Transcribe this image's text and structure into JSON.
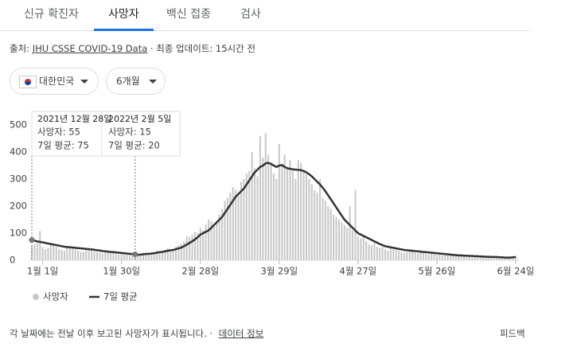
{
  "tabs": [
    "신규 확진자",
    "사망자",
    "백신 접종",
    "검사"
  ],
  "source": {
    "prefix": "출처:",
    "link": "JHU CSSE COVID-19 Data",
    "updated": "· 최종 업데이트: 15시간 전"
  },
  "filters": [
    "대한민국",
    "6개월"
  ],
  "tooltips": [
    {
      "date": "2021년 12월 28일",
      "deaths": "사망자: 55",
      "average": "7일 평균: 75"
    },
    {
      "date": "2022년 2월 5일",
      "deaths": "사망자: 15",
      "average": "7일 평균: 20"
    }
  ],
  "footer": {
    "note": "각 날짜에는 전날 이후 보고된 사망자가 표시됩니다. ·",
    "link": "데이터 정보",
    "feedback": "피드백"
  },
  "chart_data": {
    "type": "bar",
    "categories": [
      null,
      null,
      null,
      null,
      "1월 1일",
      null,
      null,
      null,
      null,
      null,
      null,
      null,
      null,
      null,
      null,
      null,
      null,
      null,
      null,
      null,
      null,
      null,
      null,
      null,
      null,
      null,
      null,
      null,
      null,
      null,
      null,
      null,
      null,
      "1월 30일",
      null,
      null,
      null,
      null,
      null,
      null,
      null,
      null,
      null,
      null,
      null,
      null,
      null,
      null,
      null,
      null,
      null,
      null,
      null,
      null,
      null,
      null,
      null,
      null,
      null,
      null,
      null,
      null,
      "2월 28일",
      null,
      null,
      null,
      null,
      null,
      null,
      null,
      null,
      null,
      null,
      null,
      null,
      null,
      null,
      null,
      null,
      null,
      null,
      null,
      null,
      null,
      null,
      null,
      null,
      null,
      null,
      null,
      null,
      "3월 29일",
      null,
      null,
      null,
      null,
      null,
      null,
      null,
      null,
      null,
      null,
      null,
      null,
      null,
      null,
      null,
      null,
      null,
      null,
      null,
      null,
      null,
      null,
      null,
      null,
      null,
      null,
      null,
      null,
      "4월 27일",
      null,
      null,
      null,
      null,
      null,
      null,
      null,
      null,
      null,
      null,
      null,
      null,
      null,
      null,
      null,
      null,
      null,
      null,
      null,
      null,
      null,
      null,
      null,
      null,
      null,
      null,
      null,
      null,
      "5월 26일",
      null,
      null,
      null,
      null,
      null,
      null,
      null,
      null,
      null,
      null,
      null,
      null,
      null,
      null,
      null,
      null,
      null,
      null,
      null,
      null,
      null,
      null,
      null,
      null,
      null,
      null,
      null,
      null,
      "6월 24일"
    ],
    "series": [
      {
        "name": "사망자",
        "type": "bar",
        "color": "#c8c8c8",
        "values": [
          55,
          60,
          70,
          108,
          48,
          40,
          45,
          60,
          55,
          50,
          42,
          38,
          35,
          48,
          52,
          45,
          40,
          35,
          30,
          32,
          38,
          45,
          40,
          33,
          30,
          28,
          25,
          30,
          35,
          32,
          28,
          25,
          22,
          24,
          28,
          25,
          20,
          22,
          18,
          15,
          20,
          28,
          30,
          25,
          22,
          28,
          35,
          32,
          30,
          38,
          45,
          40,
          35,
          50,
          55,
          60,
          70,
          90,
          85,
          95,
          105,
          100,
          120,
          110,
          130,
          150,
          145,
          125,
          140,
          170,
          190,
          220,
          230,
          250,
          270,
          260,
          240,
          290,
          300,
          320,
          330,
          400,
          340,
          310,
          460,
          380,
          470,
          390,
          360,
          320,
          300,
          430,
          350,
          390,
          340,
          370,
          330,
          300,
          370,
          360,
          330,
          320,
          300,
          280,
          260,
          250,
          300,
          230,
          220,
          200,
          190,
          170,
          160,
          150,
          140,
          130,
          120,
          200,
          110,
          260,
          90,
          80,
          85,
          70,
          60,
          55,
          65,
          50,
          45,
          50,
          40,
          35,
          45,
          40,
          38,
          35,
          30,
          28,
          30,
          35,
          32,
          28,
          25,
          30,
          28,
          25,
          22,
          28,
          25,
          20,
          22,
          18,
          20,
          22,
          18,
          18,
          15,
          20,
          16,
          14,
          18,
          15,
          12,
          14,
          16,
          12,
          10,
          14,
          12,
          10,
          12,
          9,
          11,
          8,
          10,
          12,
          9,
          10,
          15
        ]
      },
      {
        "name": "7일 평균",
        "type": "line",
        "color": "#333333",
        "values": [
          75,
          72,
          70,
          68,
          66,
          64,
          62,
          60,
          58,
          56,
          54,
          52,
          50,
          49,
          48,
          47,
          46,
          45,
          44,
          43,
          42,
          41,
          40,
          39,
          37,
          36,
          34,
          33,
          32,
          31,
          30,
          29,
          28,
          27,
          26,
          25,
          24,
          23,
          22,
          20,
          21,
          22,
          23,
          24,
          25,
          26,
          28,
          30,
          31,
          33,
          35,
          37,
          38,
          41,
          44,
          47,
          52,
          58,
          64,
          70,
          77,
          85,
          95,
          100,
          105,
          110,
          120,
          130,
          140,
          150,
          160,
          175,
          190,
          205,
          220,
          235,
          245,
          255,
          265,
          280,
          295,
          310,
          325,
          335,
          345,
          350,
          358,
          360,
          356,
          350,
          345,
          350,
          352,
          345,
          340,
          338,
          336,
          335,
          334,
          333,
          330,
          325,
          318,
          310,
          300,
          290,
          280,
          268,
          255,
          240,
          225,
          210,
          195,
          180,
          165,
          150,
          140,
          130,
          120,
          110,
          100,
          95,
          90,
          85,
          80,
          75,
          70,
          65,
          60,
          56,
          52,
          50,
          48,
          46,
          44,
          42,
          40,
          38,
          37,
          36,
          35,
          34,
          33,
          32,
          31,
          30,
          29,
          28,
          27,
          26,
          25,
          24,
          23,
          22,
          21,
          20,
          19,
          18,
          18,
          17,
          17,
          16,
          16,
          15,
          15,
          14,
          14,
          13,
          13,
          12,
          12,
          12,
          11,
          11,
          10,
          10,
          10,
          11,
          12
        ]
      }
    ],
    "ylim": [
      0,
      500
    ],
    "yticks": [
      0,
      100,
      200,
      300,
      400,
      500
    ],
    "legend": "bottom-left"
  }
}
